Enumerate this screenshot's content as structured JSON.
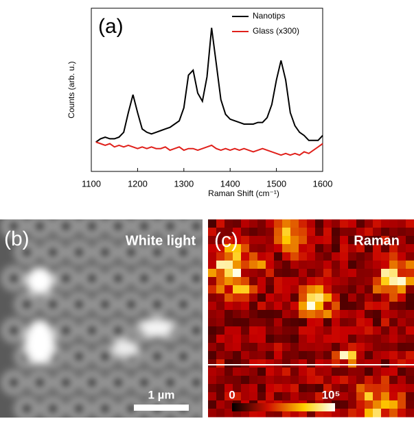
{
  "chart_data": {
    "type": "line",
    "annotation": "(a)",
    "xlabel": "Raman Shift (cm⁻¹)",
    "ylabel": "Counts (arb. u.)",
    "x": [
      1110,
      1120,
      1130,
      1140,
      1150,
      1160,
      1170,
      1180,
      1190,
      1200,
      1210,
      1220,
      1230,
      1240,
      1250,
      1260,
      1270,
      1280,
      1290,
      1300,
      1310,
      1320,
      1330,
      1340,
      1350,
      1360,
      1370,
      1380,
      1390,
      1400,
      1410,
      1420,
      1430,
      1440,
      1450,
      1460,
      1470,
      1480,
      1490,
      1500,
      1510,
      1520,
      1530,
      1540,
      1550,
      1560,
      1570,
      1580,
      1590,
      1600
    ],
    "series": [
      {
        "name": "Nanotips",
        "color": "#000000",
        "values": [
          1.8,
          2.0,
          2.1,
          2.0,
          2.0,
          2.1,
          2.4,
          3.6,
          4.7,
          3.6,
          2.6,
          2.4,
          2.3,
          2.4,
          2.5,
          2.6,
          2.7,
          2.9,
          3.1,
          3.9,
          5.9,
          6.2,
          4.8,
          4.3,
          5.8,
          8.8,
          6.6,
          4.4,
          3.5,
          3.2,
          3.1,
          3.0,
          2.9,
          2.9,
          2.9,
          3.0,
          3.0,
          3.3,
          4.1,
          5.6,
          6.8,
          5.6,
          3.6,
          2.8,
          2.4,
          2.2,
          1.9,
          1.9,
          1.9,
          2.2
        ]
      },
      {
        "name": "Glass (x300)",
        "color": "#e0201b",
        "values": [
          1.8,
          1.7,
          1.6,
          1.7,
          1.5,
          1.6,
          1.5,
          1.6,
          1.5,
          1.4,
          1.5,
          1.4,
          1.5,
          1.4,
          1.4,
          1.5,
          1.3,
          1.4,
          1.5,
          1.3,
          1.4,
          1.4,
          1.3,
          1.4,
          1.5,
          1.6,
          1.4,
          1.3,
          1.4,
          1.3,
          1.4,
          1.3,
          1.4,
          1.3,
          1.2,
          1.3,
          1.4,
          1.3,
          1.2,
          1.1,
          1.0,
          1.1,
          1.0,
          1.1,
          1.0,
          1.2,
          1.1,
          1.3,
          1.5,
          1.7
        ]
      }
    ],
    "xlim": [
      1100,
      1600
    ],
    "xticks": [
      1100,
      1200,
      1300,
      1400,
      1500,
      1600
    ],
    "ylim": [
      0,
      10
    ],
    "legend": "upper right"
  },
  "panels": {
    "b": {
      "label": "(b)",
      "title": "White light",
      "scale_bar": "1 µm"
    },
    "c": {
      "label": "(c)",
      "title": "Raman",
      "colorbar_labels": [
        "0",
        "10⁵"
      ]
    }
  }
}
